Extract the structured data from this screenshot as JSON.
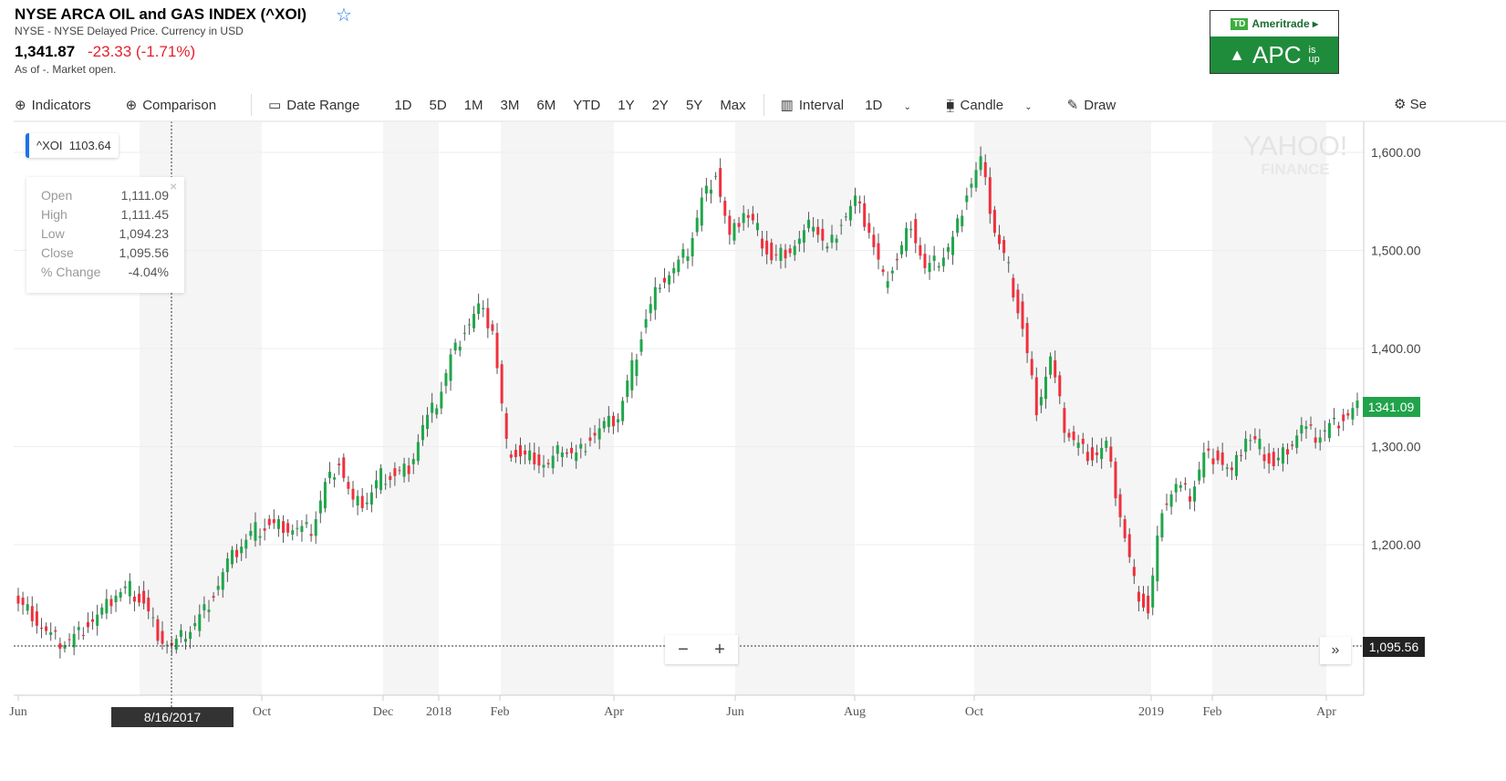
{
  "header": {
    "title": "NYSE ARCA OIL and GAS INDEX (^XOI)",
    "subtitle": "NYSE - NYSE Delayed Price. Currency in USD",
    "price": "1,341.87",
    "change": "-23.33 (-1.71%)",
    "as_of": "As of -. Market open.",
    "star_icon": "star-icon"
  },
  "ad": {
    "brand": "Ameritrade ▸",
    "td": "TD",
    "ticker": "APC",
    "is": "is",
    "up": "up"
  },
  "toolbar": {
    "indicators": "Indicators",
    "comparison": "Comparison",
    "date_range": "Date Range",
    "ranges": [
      "1D",
      "5D",
      "1M",
      "3M",
      "6M",
      "YTD",
      "1Y",
      "2Y",
      "5Y",
      "Max"
    ],
    "interval": "Interval",
    "interval_value": "1D",
    "chart_type": "Candle",
    "draw": "Draw",
    "settings": "Se"
  },
  "legend": {
    "symbol": "^XOI",
    "value": "1103.64"
  },
  "tooltip": {
    "rows": [
      {
        "label": "Open",
        "value": "1,111.09"
      },
      {
        "label": "High",
        "value": "1,111.45"
      },
      {
        "label": "Low",
        "value": "1,094.23"
      },
      {
        "label": "Close",
        "value": "1,095.56"
      },
      {
        "label": "% Change",
        "value": "-4.04%"
      }
    ],
    "close_icon": "×"
  },
  "zoom": {
    "minus": "−",
    "plus": "+",
    "more": "»"
  },
  "watermark": {
    "line1": "YAHOO!",
    "line2": "FINANCE"
  },
  "colors": {
    "up": "#1fa64a",
    "down": "#f0303c",
    "current": "#21a34b",
    "crosshair": "#333"
  },
  "chart_data": {
    "type": "candlestick",
    "title": "NYSE ARCA OIL and GAS INDEX (^XOI)",
    "interval": "weekly approximation",
    "start": "2017-06-01",
    "closes": [
      1140,
      1130,
      1110,
      1100,
      1105,
      1120,
      1130,
      1150,
      1155,
      1140,
      1110,
      1095,
      1110,
      1125,
      1150,
      1180,
      1200,
      1215,
      1220,
      1220,
      1215,
      1215,
      1260,
      1285,
      1240,
      1245,
      1270,
      1270,
      1280,
      1320,
      1345,
      1390,
      1420,
      1440,
      1420,
      1300,
      1290,
      1290,
      1280,
      1300,
      1290,
      1310,
      1320,
      1330,
      1380,
      1430,
      1470,
      1480,
      1500,
      1550,
      1580,
      1510,
      1540,
      1520,
      1490,
      1500,
      1510,
      1530,
      1500,
      1530,
      1550,
      1520,
      1470,
      1490,
      1530,
      1480,
      1490,
      1510,
      1560,
      1590,
      1520,
      1480,
      1420,
      1340,
      1390,
      1320,
      1300,
      1290,
      1300,
      1230,
      1160,
      1130,
      1240,
      1260,
      1250,
      1290,
      1290,
      1270,
      1310,
      1300,
      1280,
      1300,
      1320,
      1310,
      1320,
      1330,
      1341
    ],
    "ylim": [
      1050,
      1630
    ],
    "yticks": [
      "1,600.00",
      "1,500.00",
      "1,400.00",
      "1,300.00",
      "1,200.00"
    ],
    "ytick_values": [
      1600,
      1500,
      1400,
      1300,
      1200
    ],
    "xticks": [
      "Jun",
      "Oct",
      "Dec",
      "2018",
      "Feb",
      "Apr",
      "Jun",
      "Aug",
      "Oct",
      "2019",
      "Feb",
      "Apr"
    ],
    "current_price_label": "1341.09",
    "crosshair_price_label": "1,095.56",
    "crosshair_date": "8/16/2017"
  }
}
